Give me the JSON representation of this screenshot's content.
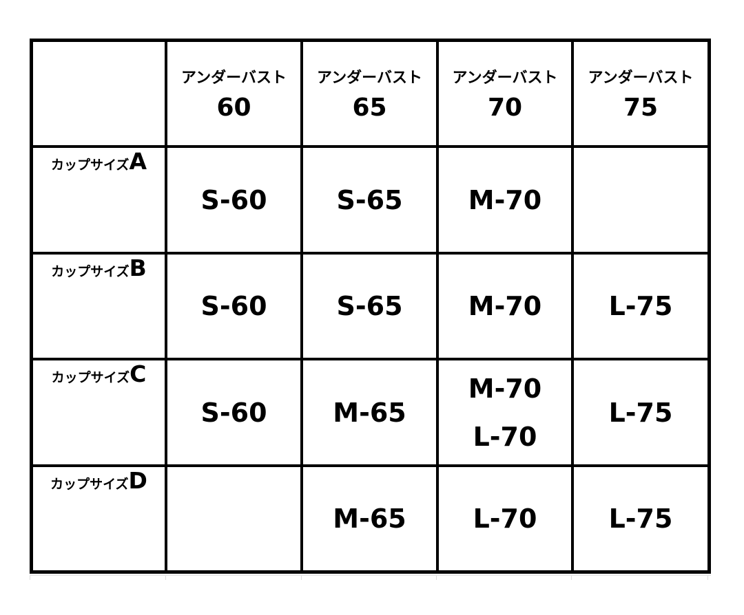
{
  "header": {
    "corner": "",
    "columns": [
      {
        "label": "アンダーバスト",
        "value": "60"
      },
      {
        "label": "アンダーバスト",
        "value": "65"
      },
      {
        "label": "アンダーバスト",
        "value": "70"
      },
      {
        "label": "アンダーバスト",
        "value": "75"
      }
    ]
  },
  "rows": [
    {
      "label": "カップサイズ",
      "cup": "A",
      "cells": [
        [
          "S-60"
        ],
        [
          "S-65"
        ],
        [
          "M-70"
        ],
        []
      ]
    },
    {
      "label": "カップサイズ",
      "cup": "B",
      "cells": [
        [
          "S-60"
        ],
        [
          "S-65"
        ],
        [
          "M-70"
        ],
        [
          "L-75"
        ]
      ]
    },
    {
      "label": "カップサイズ",
      "cup": "C",
      "cells": [
        [
          "S-60"
        ],
        [
          "M-65"
        ],
        [
          "M-70",
          "L-70"
        ],
        [
          "L-75"
        ]
      ]
    },
    {
      "label": "カップサイズ",
      "cup": "D",
      "cells": [
        [],
        [
          "M-65"
        ],
        [
          "L-70"
        ],
        [
          "L-75"
        ]
      ]
    }
  ]
}
